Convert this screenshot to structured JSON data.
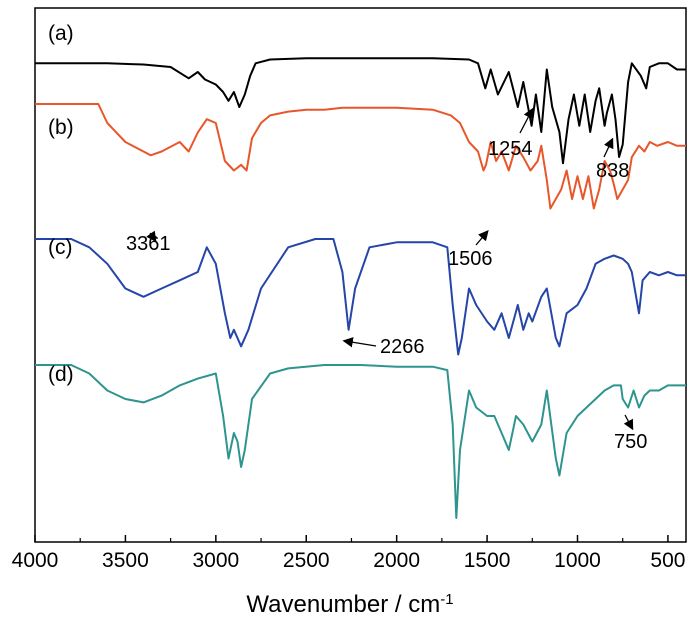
{
  "chart_data": {
    "type": "line",
    "xlabel": "Wavenumber / cm",
    "xlabel_superscript": "-1",
    "ylabel": "",
    "xlim": [
      4000,
      400
    ],
    "x_reversed": true,
    "x_ticks": [
      4000,
      3500,
      3000,
      2500,
      2000,
      1500,
      1000,
      500
    ],
    "y_ticks_shown": false,
    "grid": false,
    "series": [
      {
        "name": "(a)",
        "color": "#000000",
        "x": [
          4000,
          3800,
          3600,
          3400,
          3250,
          3150,
          3100,
          3060,
          3000,
          2960,
          2930,
          2900,
          2870,
          2840,
          2810,
          2780,
          2700,
          2500,
          2200,
          2000,
          1800,
          1600,
          1550,
          1510,
          1480,
          1440,
          1380,
          1330,
          1300,
          1254,
          1230,
          1200,
          1170,
          1140,
          1100,
          1080,
          1050,
          1020,
          990,
          960,
          930,
          900,
          880,
          850,
          838,
          810,
          790,
          770,
          750,
          720,
          700,
          650,
          620,
          600,
          550,
          500,
          450,
          400
        ],
        "y": [
          0.05,
          0.05,
          0.05,
          0.06,
          0.08,
          0.17,
          0.12,
          0.18,
          0.22,
          0.28,
          0.35,
          0.28,
          0.4,
          0.3,
          0.15,
          0.05,
          0.02,
          0.01,
          0.01,
          0.01,
          0.01,
          0.02,
          0.05,
          0.25,
          0.1,
          0.3,
          0.12,
          0.4,
          0.2,
          0.55,
          0.3,
          0.6,
          0.1,
          0.4,
          0.6,
          0.85,
          0.5,
          0.3,
          0.55,
          0.3,
          0.6,
          0.35,
          0.25,
          0.55,
          0.45,
          0.3,
          0.5,
          0.8,
          0.7,
          0.2,
          0.05,
          0.15,
          0.25,
          0.08,
          0.05,
          0.05,
          0.1,
          0.1
        ]
      },
      {
        "name": "(b)",
        "color": "#e8562a",
        "x": [
          4000,
          3800,
          3700,
          3650,
          3600,
          3500,
          3400,
          3361,
          3300,
          3200,
          3150,
          3100,
          3050,
          3000,
          2950,
          2900,
          2860,
          2830,
          2800,
          2750,
          2700,
          2600,
          2500,
          2400,
          2300,
          2200,
          2000,
          1800,
          1700,
          1650,
          1600,
          1550,
          1520,
          1506,
          1480,
          1450,
          1420,
          1380,
          1340,
          1300,
          1260,
          1220,
          1200,
          1170,
          1150,
          1120,
          1090,
          1060,
          1030,
          1000,
          970,
          940,
          910,
          880,
          850,
          820,
          800,
          780,
          750,
          720,
          700,
          660,
          630,
          600,
          560,
          500,
          450,
          400
        ],
        "y": [
          0.0,
          0.0,
          0.0,
          0.0,
          0.1,
          0.2,
          0.25,
          0.27,
          0.25,
          0.2,
          0.25,
          0.15,
          0.08,
          0.1,
          0.3,
          0.35,
          0.32,
          0.35,
          0.18,
          0.1,
          0.06,
          0.04,
          0.03,
          0.03,
          0.02,
          0.02,
          0.02,
          0.03,
          0.06,
          0.1,
          0.2,
          0.25,
          0.35,
          0.32,
          0.2,
          0.3,
          0.25,
          0.35,
          0.22,
          0.28,
          0.35,
          0.3,
          0.22,
          0.4,
          0.55,
          0.5,
          0.45,
          0.35,
          0.5,
          0.38,
          0.5,
          0.38,
          0.55,
          0.45,
          0.3,
          0.35,
          0.42,
          0.5,
          0.45,
          0.4,
          0.28,
          0.22,
          0.25,
          0.2,
          0.22,
          0.2,
          0.22,
          0.22
        ]
      },
      {
        "name": "(c)",
        "color": "#2545a8",
        "x": [
          4000,
          3800,
          3700,
          3600,
          3500,
          3400,
          3300,
          3200,
          3100,
          3050,
          3000,
          2950,
          2920,
          2900,
          2880,
          2860,
          2820,
          2750,
          2600,
          2450,
          2350,
          2300,
          2266,
          2230,
          2150,
          2000,
          1900,
          1800,
          1720,
          1690,
          1660,
          1640,
          1600,
          1560,
          1500,
          1460,
          1420,
          1380,
          1330,
          1300,
          1270,
          1250,
          1200,
          1170,
          1120,
          1100,
          1060,
          1000,
          950,
          900,
          850,
          800,
          750,
          720,
          700,
          660,
          640,
          600,
          550,
          500,
          450,
          400
        ],
        "y": [
          0.0,
          0.0,
          0.05,
          0.15,
          0.3,
          0.35,
          0.3,
          0.25,
          0.2,
          0.05,
          0.15,
          0.45,
          0.6,
          0.55,
          0.6,
          0.65,
          0.55,
          0.3,
          0.05,
          0.0,
          0.0,
          0.2,
          0.55,
          0.3,
          0.05,
          0.02,
          0.02,
          0.02,
          0.05,
          0.4,
          0.7,
          0.6,
          0.3,
          0.4,
          0.5,
          0.55,
          0.45,
          0.6,
          0.4,
          0.55,
          0.45,
          0.5,
          0.35,
          0.3,
          0.6,
          0.65,
          0.45,
          0.4,
          0.3,
          0.15,
          0.12,
          0.1,
          0.12,
          0.15,
          0.2,
          0.45,
          0.25,
          0.2,
          0.22,
          0.2,
          0.22,
          0.22
        ]
      },
      {
        "name": "(d)",
        "color": "#2e948e",
        "x": [
          4000,
          3800,
          3700,
          3600,
          3500,
          3400,
          3300,
          3200,
          3100,
          3000,
          2960,
          2930,
          2900,
          2880,
          2860,
          2840,
          2800,
          2700,
          2600,
          2400,
          2200,
          2000,
          1800,
          1720,
          1690,
          1670,
          1650,
          1600,
          1560,
          1500,
          1460,
          1420,
          1380,
          1340,
          1300,
          1250,
          1200,
          1170,
          1120,
          1100,
          1060,
          1000,
          950,
          900,
          850,
          800,
          760,
          750,
          720,
          690,
          660,
          630,
          600,
          550,
          500,
          450,
          400
        ],
        "y": [
          0.0,
          0.0,
          0.05,
          0.15,
          0.2,
          0.22,
          0.18,
          0.12,
          0.08,
          0.05,
          0.3,
          0.55,
          0.4,
          0.45,
          0.6,
          0.5,
          0.2,
          0.05,
          0.02,
          0.0,
          0.0,
          0.01,
          0.01,
          0.03,
          0.35,
          0.9,
          0.5,
          0.15,
          0.25,
          0.3,
          0.3,
          0.4,
          0.5,
          0.3,
          0.35,
          0.45,
          0.35,
          0.15,
          0.55,
          0.65,
          0.4,
          0.3,
          0.25,
          0.2,
          0.15,
          0.12,
          0.12,
          0.2,
          0.25,
          0.15,
          0.25,
          0.18,
          0.15,
          0.15,
          0.12,
          0.12,
          0.12
        ]
      }
    ],
    "annotations": [
      {
        "text": "1254",
        "series": "(a)",
        "x": 1254
      },
      {
        "text": "838",
        "series": "(a)",
        "x": 838
      },
      {
        "text": "3361",
        "series": "(b)",
        "x": 3361
      },
      {
        "text": "1506",
        "series": "(b)",
        "x": 1506
      },
      {
        "text": "2266",
        "series": "(c)",
        "x": 2266
      },
      {
        "text": "750",
        "series": "(d)",
        "x": 750
      }
    ]
  }
}
